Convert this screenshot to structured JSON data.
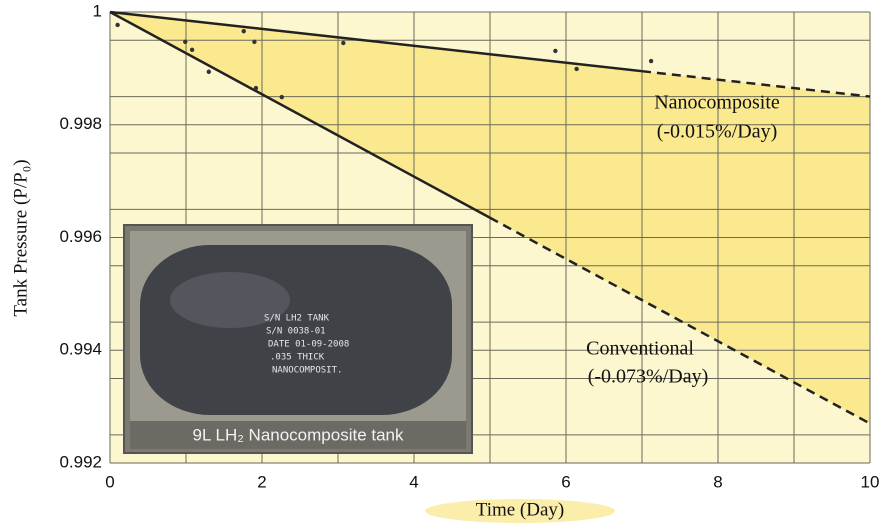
{
  "chart_data": {
    "type": "line",
    "xlabel": "Time (Day)",
    "ylabel": "Tank Pressure (P/P₀)",
    "xlim": [
      0,
      10
    ],
    "ylim": [
      0.992,
      1
    ],
    "xticks": [
      0,
      2,
      4,
      6,
      8,
      10
    ],
    "yticks": [
      0.992,
      0.994,
      0.996,
      0.998,
      1
    ],
    "minor_xticks": [
      1,
      3,
      5,
      7,
      9
    ],
    "minor_yticks": [
      0.9925,
      0.9935,
      0.9945,
      0.9955,
      0.9965,
      0.9975,
      0.9985,
      0.9995
    ],
    "grid": true,
    "series": [
      {
        "name": "Nanocomposite",
        "rate": "(-0.015%/Day)",
        "color": "#222",
        "x": [
          0,
          7,
          10
        ],
        "values": [
          1,
          0.99895,
          0.9985
        ],
        "solid_to": 7
      },
      {
        "name": "Conventional",
        "rate": "(-0.073%/Day)",
        "color": "#222",
        "x": [
          0,
          5,
          10
        ],
        "values": [
          1,
          0.99635,
          0.9927
        ],
        "solid_to": 5
      }
    ],
    "points": {
      "color": "#333",
      "x": [
        0.1,
        0.99,
        1.08,
        1.3,
        1.76,
        1.9,
        1.92,
        2.26,
        3.07,
        5.86,
        6.14,
        7.12
      ],
      "values": [
        0.99977,
        0.99947,
        0.99933,
        0.99894,
        0.99966,
        0.99947,
        0.99865,
        0.99849,
        0.99945,
        0.99931,
        0.99899,
        0.99913
      ]
    },
    "inset": {
      "caption": "9L LH₂ Nanocomposite tank",
      "label_lines": [
        "S/N LH2 TANK",
        "S/N 0038-01",
        "DATE 01-09-2008",
        ".035 THICK",
        "NANOCOMPOSIT."
      ]
    }
  }
}
